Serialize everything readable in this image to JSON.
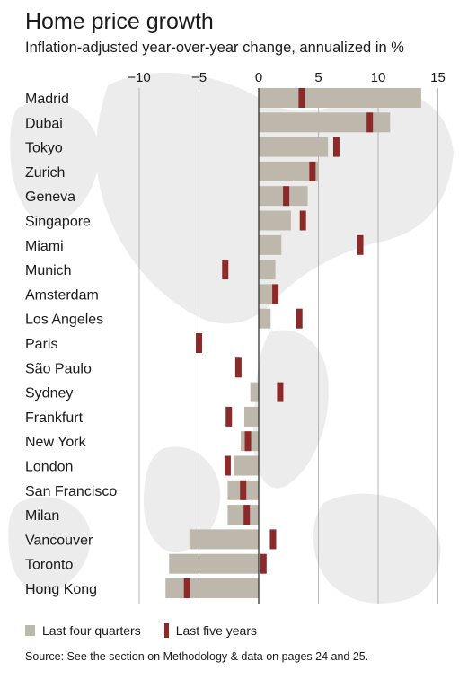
{
  "chart_data": {
    "type": "bar",
    "title": "Home price growth",
    "subtitle": "Inflation-adjusted year-over-year change, annualized in %",
    "categories": [
      "Madrid",
      "Dubai",
      "Tokyo",
      "Zurich",
      "Geneva",
      "Singapore",
      "Miami",
      "Munich",
      "Amsterdam",
      "Los Angeles",
      "Paris",
      "São Paulo",
      "Sydney",
      "Frankfurt",
      "New York",
      "London",
      "San Francisco",
      "Milan",
      "Vancouver",
      "Toronto",
      "Hong Kong"
    ],
    "series": [
      {
        "name": "Last four quarters",
        "values": [
          13.6,
          11.0,
          5.8,
          5.0,
          4.1,
          2.7,
          1.9,
          1.4,
          1.4,
          1.0,
          0.0,
          0.0,
          -0.7,
          -1.2,
          -1.5,
          -2.1,
          -2.6,
          -2.6,
          -5.8,
          -7.5,
          -7.8
        ]
      },
      {
        "name": "Last five years",
        "values": [
          3.6,
          9.3,
          6.5,
          4.5,
          2.3,
          3.7,
          8.5,
          -2.8,
          1.4,
          3.4,
          -5.0,
          -1.7,
          1.8,
          -2.5,
          -0.9,
          -2.6,
          -1.3,
          -1.0,
          1.2,
          0.4,
          -6.0
        ]
      }
    ],
    "xticks": [
      "−10",
      "−5",
      "0",
      "5",
      "10",
      "15"
    ],
    "xtick_values": [
      -10,
      -5,
      0,
      5,
      10,
      15
    ],
    "xlim": [
      -10,
      15
    ],
    "grid": true,
    "legend_position": "bottom-left",
    "colors": {
      "bar": "#bdb8ab",
      "mark": "#8c2a2a",
      "grid": "#a8a8a8",
      "zero_line": "#222222"
    }
  },
  "source": "Source: See the section on Methodology & data on pages 24 and 25."
}
